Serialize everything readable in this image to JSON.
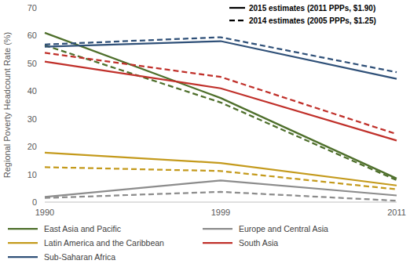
{
  "chart_data": {
    "type": "line",
    "y_label": "Regional Poverty Headcount Rate (%)",
    "categories": [
      "1990",
      "1999",
      "2011"
    ],
    "ylim": [
      0,
      70
    ],
    "yticks": [
      0,
      10,
      20,
      30,
      40,
      50,
      60,
      70
    ],
    "grid": false,
    "legend": "bottom",
    "style_legend": [
      {
        "label": "2015 estimates (2011 PPPs, $1.90)",
        "line_style": "solid"
      },
      {
        "label": "2014 estimates (2005 PPPs, $1.25)",
        "line_style": "dashed"
      }
    ],
    "series": [
      {
        "name": "East Asia and Pacific",
        "color": "#4e6f2b",
        "line_style": "solid",
        "values": [
          61.0,
          37.5,
          8.5
        ]
      },
      {
        "name": "East Asia and Pacific",
        "color": "#4e6f2b",
        "line_style": "dashed",
        "values": [
          56.5,
          35.9,
          7.9
        ]
      },
      {
        "name": "Europe and Central Asia",
        "color": "#8c8c8c",
        "line_style": "solid",
        "values": [
          1.9,
          7.8,
          2.4
        ]
      },
      {
        "name": "Europe and Central Asia",
        "color": "#8c8c8c",
        "line_style": "dashed",
        "values": [
          1.5,
          3.7,
          0.5
        ]
      },
      {
        "name": "Latin America and the Caribbean",
        "color": "#c49a1c",
        "line_style": "solid",
        "values": [
          17.8,
          14.1,
          6.0
        ]
      },
      {
        "name": "Latin America and the Caribbean",
        "color": "#c49a1c",
        "line_style": "dashed",
        "values": [
          12.6,
          11.2,
          4.6
        ]
      },
      {
        "name": "South Asia",
        "color": "#c0302a",
        "line_style": "solid",
        "values": [
          50.6,
          41.0,
          22.2
        ]
      },
      {
        "name": "South Asia",
        "color": "#c0302a",
        "line_style": "dashed",
        "values": [
          53.8,
          45.1,
          24.5
        ]
      },
      {
        "name": "Sub-Saharan Africa",
        "color": "#2f5078",
        "line_style": "solid",
        "values": [
          56.0,
          58.0,
          44.4
        ]
      },
      {
        "name": "Sub-Saharan Africa",
        "color": "#2f5078",
        "line_style": "dashed",
        "values": [
          56.8,
          59.4,
          46.8
        ]
      }
    ]
  }
}
